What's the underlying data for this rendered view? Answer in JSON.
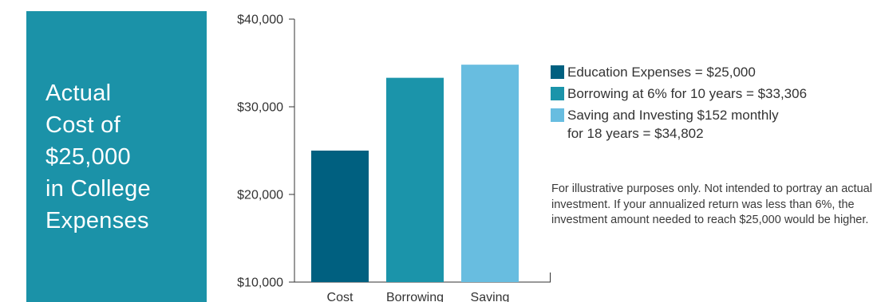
{
  "title_lines": [
    "Actual",
    "Cost of",
    "$25,000",
    "in College",
    "Expenses"
  ],
  "chart_data": {
    "type": "bar",
    "categories": [
      "Cost",
      "Borrowing",
      "Saving"
    ],
    "values": [
      25000,
      33306,
      34802
    ],
    "colors": [
      "#006080",
      "#1b94aa",
      "#68bde0"
    ],
    "ylim": [
      10000,
      40000
    ],
    "yticks": [
      10000,
      20000,
      30000,
      40000
    ],
    "ytick_labels": [
      "$10,000",
      "$20,000",
      "$30,000",
      "$40,000"
    ],
    "grid": false,
    "legend_placement": "right"
  },
  "legend": [
    {
      "text": "Education Expenses = $25,000",
      "color": "#006080"
    },
    {
      "text": "Borrowing at 6% for 10 years = $33,306",
      "color": "#1b94aa"
    },
    {
      "text": "Saving and Investing $152 monthly\nfor 18 years = $34,802",
      "color": "#68bde0"
    }
  ],
  "note": "For illustrative purposes only. Not intended to portray an actual investment. If your annualized return was less than 6%, the investment amount needed to reach $25,000 would be higher."
}
